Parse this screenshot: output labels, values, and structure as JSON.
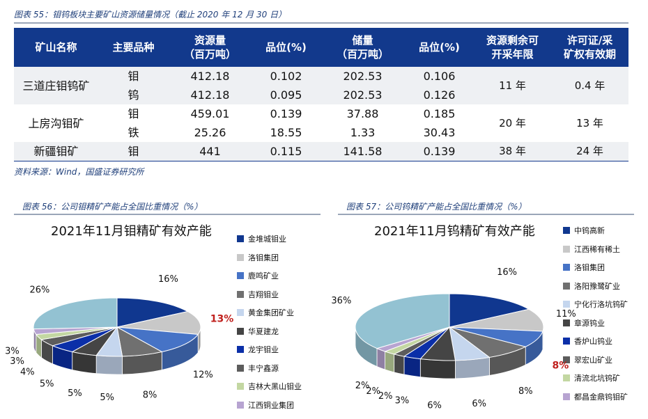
{
  "table_section": {
    "caption": "图表 55：钼钨板块主要矿山资源储量情况（截止 2020 年 12 月 30 日）",
    "headers": [
      {
        "l1": "矿山名称",
        "l2": ""
      },
      {
        "l1": "主要品种",
        "l2": ""
      },
      {
        "l1": "资源量",
        "l2": "（百万吨）"
      },
      {
        "l1": "品位(%)",
        "l2": ""
      },
      {
        "l1": "储量",
        "l2": "（百万吨）"
      },
      {
        "l1": "品位(%)",
        "l2": ""
      },
      {
        "l1": "资源剩余可",
        "l2": "开采年限"
      },
      {
        "l1": "许可证/采",
        "l2": "矿权有效期"
      }
    ],
    "rows": [
      {
        "mine": "三道庄钼钨矿",
        "life": "11 年",
        "permit": "0.4 年",
        "alt": true,
        "items": [
          {
            "product": "钼",
            "resource": "412.18",
            "grade1": "0.102",
            "reserve": "202.53",
            "grade2": "0.106"
          },
          {
            "product": "钨",
            "resource": "412.18",
            "grade1": "0.095",
            "reserve": "202.53",
            "grade2": "0.126"
          }
        ]
      },
      {
        "mine": "上房沟钼矿",
        "life": "20 年",
        "permit": "13 年",
        "alt": false,
        "items": [
          {
            "product": "钼",
            "resource": "459.01",
            "grade1": "0.139",
            "reserve": "37.88",
            "grade2": "0.185"
          },
          {
            "product": "铁",
            "resource": "25.26",
            "grade1": "18.55",
            "reserve": "1.33",
            "grade2": "30.43"
          }
        ]
      },
      {
        "mine": "新疆钼矿",
        "life": "38 年",
        "permit": "24 年",
        "alt": true,
        "items": [
          {
            "product": "钼",
            "resource": "441",
            "grade1": "0.115",
            "reserve": "141.58",
            "grade2": "0.139"
          }
        ]
      }
    ],
    "source": "资料来源：Wind，国盛证券研究所"
  },
  "chart_data": [
    {
      "type": "pie",
      "caption": "图表 56：公司钼精矿产能占全国比重情况（%）",
      "title": "2021年11月钼精矿有效产能",
      "slices": [
        {
          "name": "金堆城钼业",
          "value": 16,
          "label": "16%",
          "color": "#10378f"
        },
        {
          "name": "洛钼集团",
          "value": 13,
          "label": "13%",
          "color": "#c8c8c8",
          "highlight": true
        },
        {
          "name": "鹿鸣矿业",
          "value": 12,
          "label": "12%",
          "color": "#4673c6"
        },
        {
          "name": "吉翔钼业",
          "value": 8,
          "label": "8%",
          "color": "#707070"
        },
        {
          "name": "黄金集团矿业",
          "value": 5,
          "label": "5%",
          "color": "#c5d6ee"
        },
        {
          "name": "华夏建龙",
          "value": 5,
          "label": "5%",
          "color": "#454545"
        },
        {
          "name": "龙宇钼业",
          "value": 5,
          "label": "5%",
          "color": "#0b2fa8"
        },
        {
          "name": "丰宁鑫源",
          "value": 4,
          "label": "4%",
          "color": "#5c5c5c"
        },
        {
          "name": "吉林大黑山钼业",
          "value": 3,
          "label": "3%",
          "color": "#c3d7a2"
        },
        {
          "name": "江西铜业集团",
          "value": 3,
          "label": "3%",
          "color": "#b7a4d1"
        },
        {
          "name": "",
          "value": 26,
          "label": "26%",
          "color": "#93c2d2"
        }
      ]
    },
    {
      "type": "pie",
      "caption": "图表 57：公司钨精矿产能占全国比重情况（%）",
      "title": "2021年11月钨精矿有效产能",
      "slices": [
        {
          "name": "中钨高新",
          "value": 16,
          "label": "16%",
          "color": "#10378f"
        },
        {
          "name": "江西稀有稀土",
          "value": 11,
          "label": "11%",
          "color": "#c8c8c8"
        },
        {
          "name": "洛钼集团",
          "value": 8,
          "label": "8%",
          "color": "#4673c6",
          "highlight": true
        },
        {
          "name": "洛阳豫鹭矿业",
          "value": 8,
          "label": "8%",
          "color": "#707070"
        },
        {
          "name": "宁化行洛坑钨矿",
          "value": 6,
          "label": "6%",
          "color": "#c5d6ee"
        },
        {
          "name": "章源钨业",
          "value": 6,
          "label": "6%",
          "color": "#454545"
        },
        {
          "name": "香炉山钨业",
          "value": 3,
          "label": "3%",
          "color": "#0b2fa8"
        },
        {
          "name": "翠宏山矿业",
          "value": 2,
          "label": "2%",
          "color": "#5c5c5c"
        },
        {
          "name": "清流北坑钨矿",
          "value": 2,
          "label": "2%",
          "color": "#c3d7a2"
        },
        {
          "name": "都昌金鼎钨钼矿",
          "value": 2,
          "label": "2%",
          "color": "#b7a4d1"
        },
        {
          "name": "",
          "value": 36,
          "label": "36%",
          "color": "#93c2d2"
        }
      ]
    }
  ]
}
